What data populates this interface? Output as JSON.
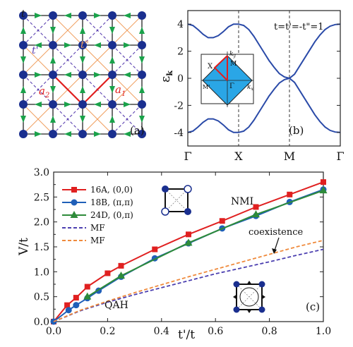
{
  "panel_a": {
    "label": "(a)",
    "bond_labels": {
      "t": "t",
      "t1": "t'",
      "t2": "t\""
    },
    "vector_labels": {
      "a1": "a",
      "a1_sub": "1",
      "a2": "a",
      "a2_sub": "2"
    },
    "colors": {
      "site": "#1a2f8f",
      "nn_bond": "#222222",
      "arrow": "#1aa24a",
      "t1_bond": "#5a3fb0",
      "t2_bond": "#f0a060",
      "vector": "#e02020"
    }
  },
  "panel_b": {
    "label": "(b)",
    "annotation": "t=t'=-t\"=1",
    "ylabel": "ε",
    "ylabel_sub": "k",
    "x_ticks": [
      "Γ",
      "X",
      "M",
      "Γ"
    ],
    "y_ticks": [
      "-4",
      "-2",
      "0",
      "2",
      "4"
    ],
    "inset_labels": {
      "ky": "k",
      "ky_sub": "y",
      "kx": "k",
      "kx_sub": "x",
      "M": "M",
      "X": "X",
      "Gamma": "Γ",
      "Mprime": "M'"
    },
    "colors": {
      "band": "#2a4aa8",
      "bz_fill": "#2aa6e6",
      "path": "#e02020"
    }
  },
  "panel_c": {
    "label": "(c)",
    "region_labels": {
      "upper": "NMI",
      "lower": "QAH",
      "line": "coexistence"
    }
  },
  "chart_data": [
    {
      "type": "line",
      "panel": "(b)",
      "title": "",
      "xlabel": "",
      "ylabel": "εk",
      "x_ticks": [
        "Γ",
        "X",
        "M",
        "Γ"
      ],
      "ylim": [
        -5,
        5
      ],
      "series": [
        {
          "x": [
            0,
            0.1,
            0.2,
            0.3,
            0.4,
            0.5,
            0.6,
            0.7,
            0.8,
            0.9,
            1.0,
            1.1,
            1.2,
            1.3,
            1.4,
            1.5,
            1.6,
            1.7,
            1.8,
            1.9,
            2.0,
            2.1,
            2.2,
            2.3,
            2.4,
            2.5,
            2.6,
            2.7,
            2.8,
            2.9,
            3.0
          ],
          "values": [
            4.0,
            3.9,
            3.6,
            3.25,
            3.0,
            3.0,
            3.15,
            3.45,
            3.8,
            4.0,
            4.0,
            3.9,
            3.6,
            3.1,
            2.5,
            1.9,
            1.3,
            0.8,
            0.35,
            0.1,
            0.0,
            0.3,
            0.9,
            1.5,
            2.1,
            2.7,
            3.2,
            3.6,
            3.85,
            3.97,
            4.0
          ]
        },
        {
          "x": [
            0,
            0.1,
            0.2,
            0.3,
            0.4,
            0.5,
            0.6,
            0.7,
            0.8,
            0.9,
            1.0,
            1.1,
            1.2,
            1.3,
            1.4,
            1.5,
            1.6,
            1.7,
            1.8,
            1.9,
            2.0,
            2.1,
            2.2,
            2.3,
            2.4,
            2.5,
            2.6,
            2.7,
            2.8,
            2.9,
            3.0
          ],
          "values": [
            -4.0,
            -3.9,
            -3.6,
            -3.25,
            -3.0,
            -3.0,
            -3.15,
            -3.45,
            -3.8,
            -4.0,
            -4.0,
            -3.9,
            -3.6,
            -3.1,
            -2.5,
            -1.9,
            -1.3,
            -0.8,
            -0.35,
            -0.1,
            0.0,
            -0.3,
            -0.9,
            -1.5,
            -2.1,
            -2.7,
            -3.2,
            -3.6,
            -3.85,
            -3.97,
            -4.0
          ]
        }
      ]
    },
    {
      "type": "line",
      "panel": "(c)",
      "title": "",
      "xlabel": "t'/t",
      "ylabel": "V/t",
      "xlim": [
        0,
        1.0
      ],
      "ylim": [
        0,
        3.0
      ],
      "x_ticks": [
        "0.0",
        "0.2",
        "0.4",
        "0.6",
        "0.8",
        "1.0"
      ],
      "y_ticks": [
        "0.0",
        "0.5",
        "1.0",
        "1.5",
        "2.0",
        "2.5",
        "3.0"
      ],
      "legend_position": "upper-left",
      "series": [
        {
          "name": "16A, (0,0)",
          "color": "#e02020",
          "marker": "square",
          "dashed": false,
          "x": [
            0,
            0.05,
            0.0833,
            0.125,
            0.2,
            0.25,
            0.375,
            0.5,
            0.625,
            0.75,
            0.875,
            1.0
          ],
          "values": [
            0,
            0.33,
            0.48,
            0.7,
            0.97,
            1.12,
            1.45,
            1.75,
            2.02,
            2.3,
            2.55,
            2.8
          ]
        },
        {
          "name": "18B, (π,π)",
          "color": "#1f5fb8",
          "marker": "circle",
          "dashed": false,
          "x": [
            0,
            0.0556,
            0.0833,
            0.125,
            0.1667,
            0.25,
            0.375,
            0.5,
            0.625,
            0.75,
            0.875,
            1.0
          ],
          "values": [
            0,
            0.23,
            0.33,
            0.47,
            0.62,
            0.9,
            1.27,
            1.57,
            1.87,
            2.12,
            2.4,
            2.65
          ]
        },
        {
          "name": "24D, (0,π)",
          "color": "#2e8b3a",
          "marker": "triangle",
          "dashed": false,
          "x": [
            0.125,
            0.25,
            0.5,
            0.75,
            1.0
          ],
          "values": [
            0.5,
            0.92,
            1.58,
            2.15,
            2.63
          ]
        },
        {
          "name": "MF",
          "color": "#4b3fb0",
          "marker": "none",
          "dashed": true,
          "x": [
            0,
            0.1,
            0.2,
            0.3,
            0.4,
            0.5,
            0.6,
            0.7,
            0.8,
            0.9,
            1.0
          ],
          "values": [
            0,
            0.22,
            0.39,
            0.54,
            0.68,
            0.82,
            0.96,
            1.08,
            1.2,
            1.33,
            1.45
          ]
        },
        {
          "name": "MF",
          "color": "#ef8a3c",
          "marker": "none",
          "dashed": true,
          "x": [
            0,
            0.1,
            0.2,
            0.3,
            0.4,
            0.5,
            0.6,
            0.7,
            0.8,
            0.9,
            1.0
          ],
          "values": [
            0,
            0.23,
            0.41,
            0.58,
            0.74,
            0.9,
            1.05,
            1.2,
            1.35,
            1.5,
            1.63
          ]
        }
      ]
    }
  ]
}
